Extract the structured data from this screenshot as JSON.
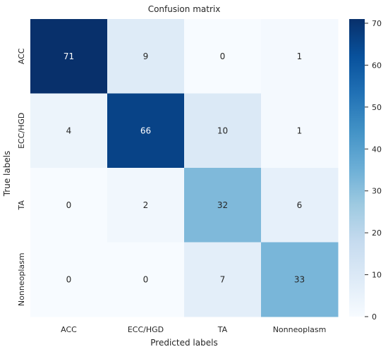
{
  "chart_data": {
    "type": "heatmap",
    "title": "Confusion matrix",
    "xlabel": "Predicted labels",
    "ylabel": "True labels",
    "x_categories": [
      "ACC",
      "ECC/HGD",
      "TA",
      "Nonneoplasm"
    ],
    "y_categories": [
      "ACC",
      "ECC/HGD",
      "TA",
      "Nonneoplasm"
    ],
    "values": [
      [
        71,
        9,
        0,
        1
      ],
      [
        4,
        66,
        10,
        1
      ],
      [
        0,
        2,
        32,
        6
      ],
      [
        0,
        0,
        7,
        33
      ]
    ],
    "colorbar": {
      "min": 0,
      "max": 71,
      "ticks": [
        0,
        10,
        20,
        30,
        40,
        50,
        60,
        70
      ],
      "colormap": "Blues"
    }
  }
}
